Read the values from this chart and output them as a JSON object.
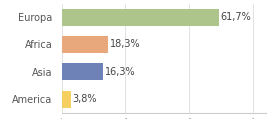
{
  "categories": [
    "America",
    "Asia",
    "Africa",
    "Europa"
  ],
  "values": [
    3.8,
    16.3,
    18.3,
    61.7
  ],
  "labels": [
    "3,8%",
    "16,3%",
    "18,3%",
    "61,7%"
  ],
  "bar_colors": [
    "#f5d060",
    "#6e82b8",
    "#e8a87c",
    "#adc48a"
  ],
  "background_color": "#ffffff",
  "xlim": [
    0,
    80
  ],
  "label_fontsize": 7.0,
  "tick_fontsize": 7.0,
  "bar_height": 0.62
}
